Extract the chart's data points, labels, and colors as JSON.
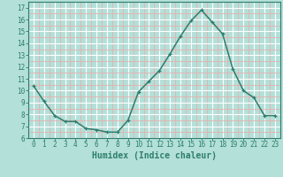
{
  "x": [
    0,
    1,
    2,
    3,
    4,
    5,
    6,
    7,
    8,
    9,
    10,
    11,
    12,
    13,
    14,
    15,
    16,
    17,
    18,
    19,
    20,
    21,
    22,
    23
  ],
  "y": [
    10.4,
    9.1,
    7.9,
    7.4,
    7.4,
    6.8,
    6.7,
    6.5,
    6.5,
    7.5,
    9.9,
    10.8,
    11.7,
    13.1,
    14.6,
    15.9,
    16.8,
    15.8,
    14.8,
    11.8,
    10.0,
    9.4,
    7.9,
    7.9
  ],
  "line_color": "#2e7d6e",
  "marker": "+",
  "bg_color": "#b3e0d8",
  "grid_major_color": "#ffffff",
  "grid_minor_color": "#e8b0b0",
  "xlabel": "Humidex (Indice chaleur)",
  "xlim": [
    -0.5,
    23.5
  ],
  "ylim": [
    6,
    17.5
  ],
  "yticks": [
    6,
    7,
    8,
    9,
    10,
    11,
    12,
    13,
    14,
    15,
    16,
    17
  ],
  "xticks": [
    0,
    1,
    2,
    3,
    4,
    5,
    6,
    7,
    8,
    9,
    10,
    11,
    12,
    13,
    14,
    15,
    16,
    17,
    18,
    19,
    20,
    21,
    22,
    23
  ],
  "tick_fontsize": 5.5,
  "xlabel_fontsize": 7.0,
  "linewidth": 1.1,
  "markersize": 3.5,
  "spine_color": "#2e7d6e"
}
